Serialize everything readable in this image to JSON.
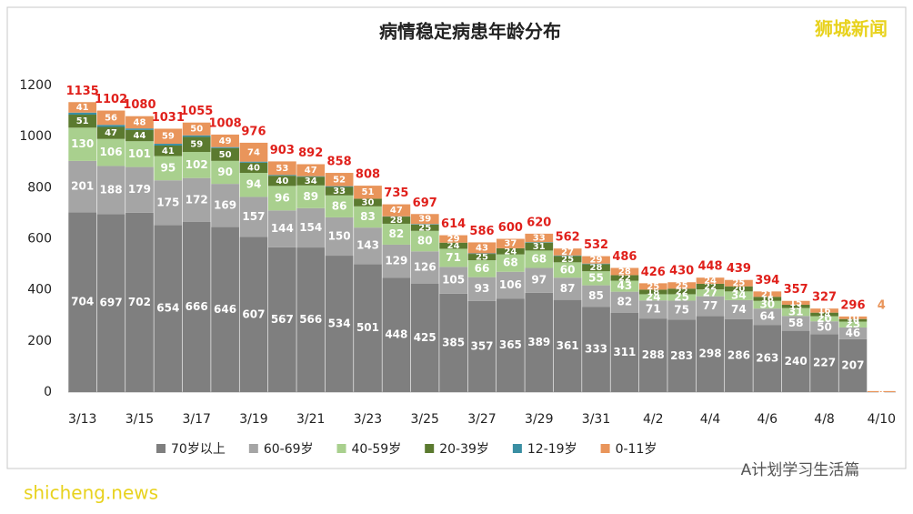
{
  "chart_data": {
    "type": "bar",
    "stacked": true,
    "title": "病情稳定病患年龄分布",
    "categories": [
      "3/13",
      null,
      "3/15",
      null,
      "3/17",
      null,
      "3/19",
      null,
      "3/21",
      null,
      "3/23",
      null,
      "3/25",
      null,
      "3/27",
      null,
      "3/29",
      null,
      "3/31",
      null,
      "4/2",
      null,
      "4/4",
      null,
      "4/6",
      null,
      "4/8",
      null,
      "4/10"
    ],
    "series": [
      {
        "name": "70岁以上",
        "color": "#7f7f7f",
        "values": [
          704,
          697,
          702,
          654,
          666,
          646,
          607,
          567,
          566,
          534,
          501,
          448,
          425,
          385,
          357,
          365,
          389,
          361,
          333,
          311,
          288,
          283,
          298,
          286,
          263,
          240,
          227,
          207,
          null
        ]
      },
      {
        "name": "60-69岁",
        "color": "#a5a5a5",
        "values": [
          201,
          188,
          179,
          175,
          172,
          169,
          157,
          144,
          154,
          150,
          143,
          129,
          126,
          105,
          93,
          106,
          97,
          87,
          85,
          82,
          71,
          75,
          77,
          74,
          64,
          58,
          50,
          46,
          null
        ]
      },
      {
        "name": "40-59岁",
        "color": "#a9d08e",
        "values": [
          130,
          106,
          101,
          95,
          102,
          90,
          94,
          96,
          89,
          86,
          83,
          82,
          80,
          71,
          66,
          68,
          68,
          60,
          55,
          43,
          24,
          25,
          27,
          34,
          30,
          31,
          20,
          23,
          null
        ]
      },
      {
        "name": "20-39岁",
        "color": "#5b7a2f",
        "values": [
          51,
          47,
          44,
          41,
          59,
          50,
          40,
          40,
          34,
          33,
          30,
          28,
          25,
          24,
          25,
          24,
          31,
          25,
          28,
          22,
          18,
          22,
          22,
          20,
          16,
          13,
          14,
          10,
          null
        ]
      },
      {
        "name": "12-19岁",
        "color": "#3a8fa3",
        "values": [
          8,
          8,
          6,
          7,
          6,
          4,
          4,
          3,
          2,
          3,
          0,
          1,
          2,
          0,
          2,
          0,
          2,
          2,
          2,
          0,
          0,
          0,
          0,
          0,
          0,
          0,
          0,
          0,
          null
        ]
      },
      {
        "name": "0-11岁",
        "color": "#e9955b",
        "values": [
          41,
          56,
          48,
          59,
          50,
          49,
          74,
          53,
          47,
          52,
          51,
          47,
          39,
          29,
          43,
          37,
          33,
          27,
          29,
          28,
          25,
          25,
          24,
          25,
          21,
          15,
          16,
          10,
          4
        ]
      }
    ],
    "totals": [
      1135,
      1102,
      1080,
      1031,
      1055,
      1008,
      976,
      903,
      892,
      858,
      808,
      735,
      697,
      614,
      586,
      600,
      620,
      562,
      532,
      486,
      426,
      430,
      448,
      439,
      394,
      357,
      327,
      296,
      4
    ],
    "totals_color": "#e0201b",
    "ylim": [
      0,
      1200
    ],
    "yticks": [
      0,
      200,
      400,
      600,
      800,
      1000,
      1200
    ],
    "grid": false,
    "legend": "bottom"
  },
  "watermarks": {
    "top": "狮城新闻",
    "bottom": "shicheng.news",
    "account": "A计划学习生活篇"
  }
}
